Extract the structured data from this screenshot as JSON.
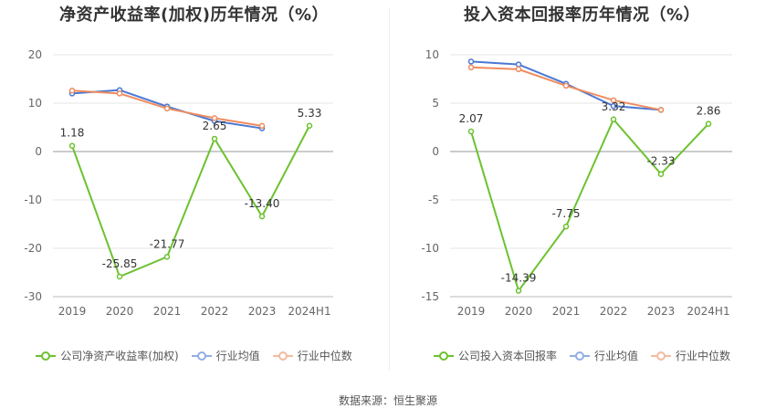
{
  "source": "数据来源：恒生聚源",
  "chart_data": [
    {
      "type": "line",
      "title": "净资产收益率(加权)历年情况（%）",
      "categories": [
        "2019",
        "2020",
        "2021",
        "2022",
        "2023",
        "2024H1"
      ],
      "ylim": [
        -30,
        20
      ],
      "yticks": [
        20,
        10,
        0,
        -10,
        -20,
        -30
      ],
      "grid": true,
      "legend_position": "bottom",
      "series": [
        {
          "name": "公司净资产收益率(加权)",
          "color": "#6cc230",
          "values": [
            1.18,
            -25.85,
            -21.77,
            2.65,
            -13.4,
            5.33
          ],
          "labels": [
            "1.18",
            "-25.85",
            "-21.77",
            "2.65",
            "-13.40",
            "5.33"
          ]
        },
        {
          "name": "行业均值",
          "color": "#4a78d4",
          "values": [
            12.0,
            12.7,
            9.3,
            6.3,
            4.8,
            null
          ]
        },
        {
          "name": "行业中位数",
          "color": "#f08c5f",
          "values": [
            12.6,
            12.0,
            8.9,
            6.9,
            5.3,
            null
          ]
        }
      ]
    },
    {
      "type": "line",
      "title": "投入资本回报率历年情况（%）",
      "categories": [
        "2019",
        "2020",
        "2021",
        "2022",
        "2023",
        "2024H1"
      ],
      "ylim": [
        -15,
        10
      ],
      "yticks": [
        10,
        5,
        0,
        -5,
        -10,
        -15
      ],
      "grid": true,
      "legend_position": "bottom",
      "series": [
        {
          "name": "公司投入资本回报率",
          "color": "#6cc230",
          "values": [
            2.07,
            -14.39,
            -7.75,
            3.32,
            -2.33,
            2.86
          ],
          "labels": [
            "2.07",
            "-14.39",
            "-7.75",
            "3.32",
            "-2.33",
            "2.86"
          ]
        },
        {
          "name": "行业均值",
          "color": "#4a78d4",
          "values": [
            9.3,
            9.0,
            7.0,
            4.7,
            4.3,
            null
          ]
        },
        {
          "name": "行业中位数",
          "color": "#f08c5f",
          "values": [
            8.7,
            8.5,
            6.8,
            5.3,
            4.3,
            null
          ]
        }
      ]
    }
  ]
}
